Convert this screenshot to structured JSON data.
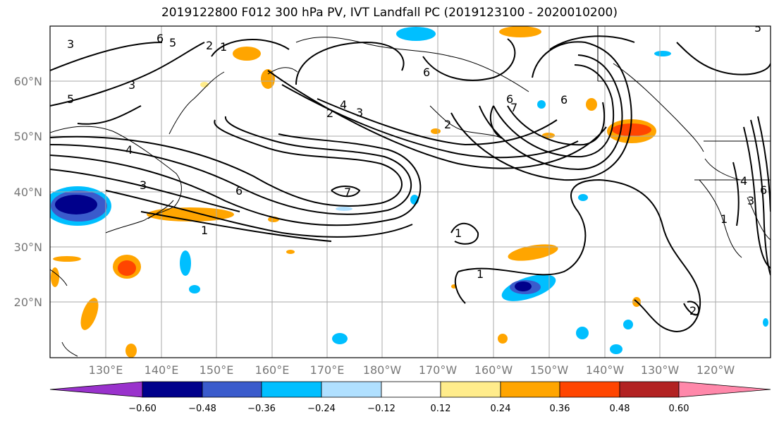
{
  "title": "2019122800 F012 300 hPa PV, IVT Landfall PC (2019123100 - 2020010200)",
  "lat_labels": [
    "60°N",
    "50°N",
    "40°N",
    "30°N",
    "20°N"
  ],
  "lon_labels": [
    "130°E",
    "140°E",
    "150°E",
    "160°E",
    "170°E",
    "180°W",
    "170°W",
    "160°W",
    "150°W",
    "140°W",
    "130°W",
    "120°W"
  ],
  "colorbar": {
    "colors": [
      "#9932cc",
      "#00008b",
      "#3a5bcc",
      "#00bfff",
      "#b0e0ff",
      "#ffffff",
      "#ffec8b",
      "#ffa500",
      "#ff4500",
      "#b22222",
      "#ff88aa"
    ],
    "tick_labels": [
      "−0.60",
      "−0.48",
      "−0.36",
      "−0.24",
      "−0.12",
      "0.12",
      "0.24",
      "0.36",
      "0.48",
      "0.60"
    ]
  },
  "contour_labels": [
    "3",
    "6",
    "5",
    "4",
    "2",
    "1",
    "3",
    "5",
    "4",
    "3",
    "2",
    "6",
    "3",
    "6",
    "7",
    "1",
    "1",
    "1",
    "6",
    "7",
    "6",
    "2",
    "2",
    "1",
    "6",
    "3",
    "4",
    "5"
  ]
}
